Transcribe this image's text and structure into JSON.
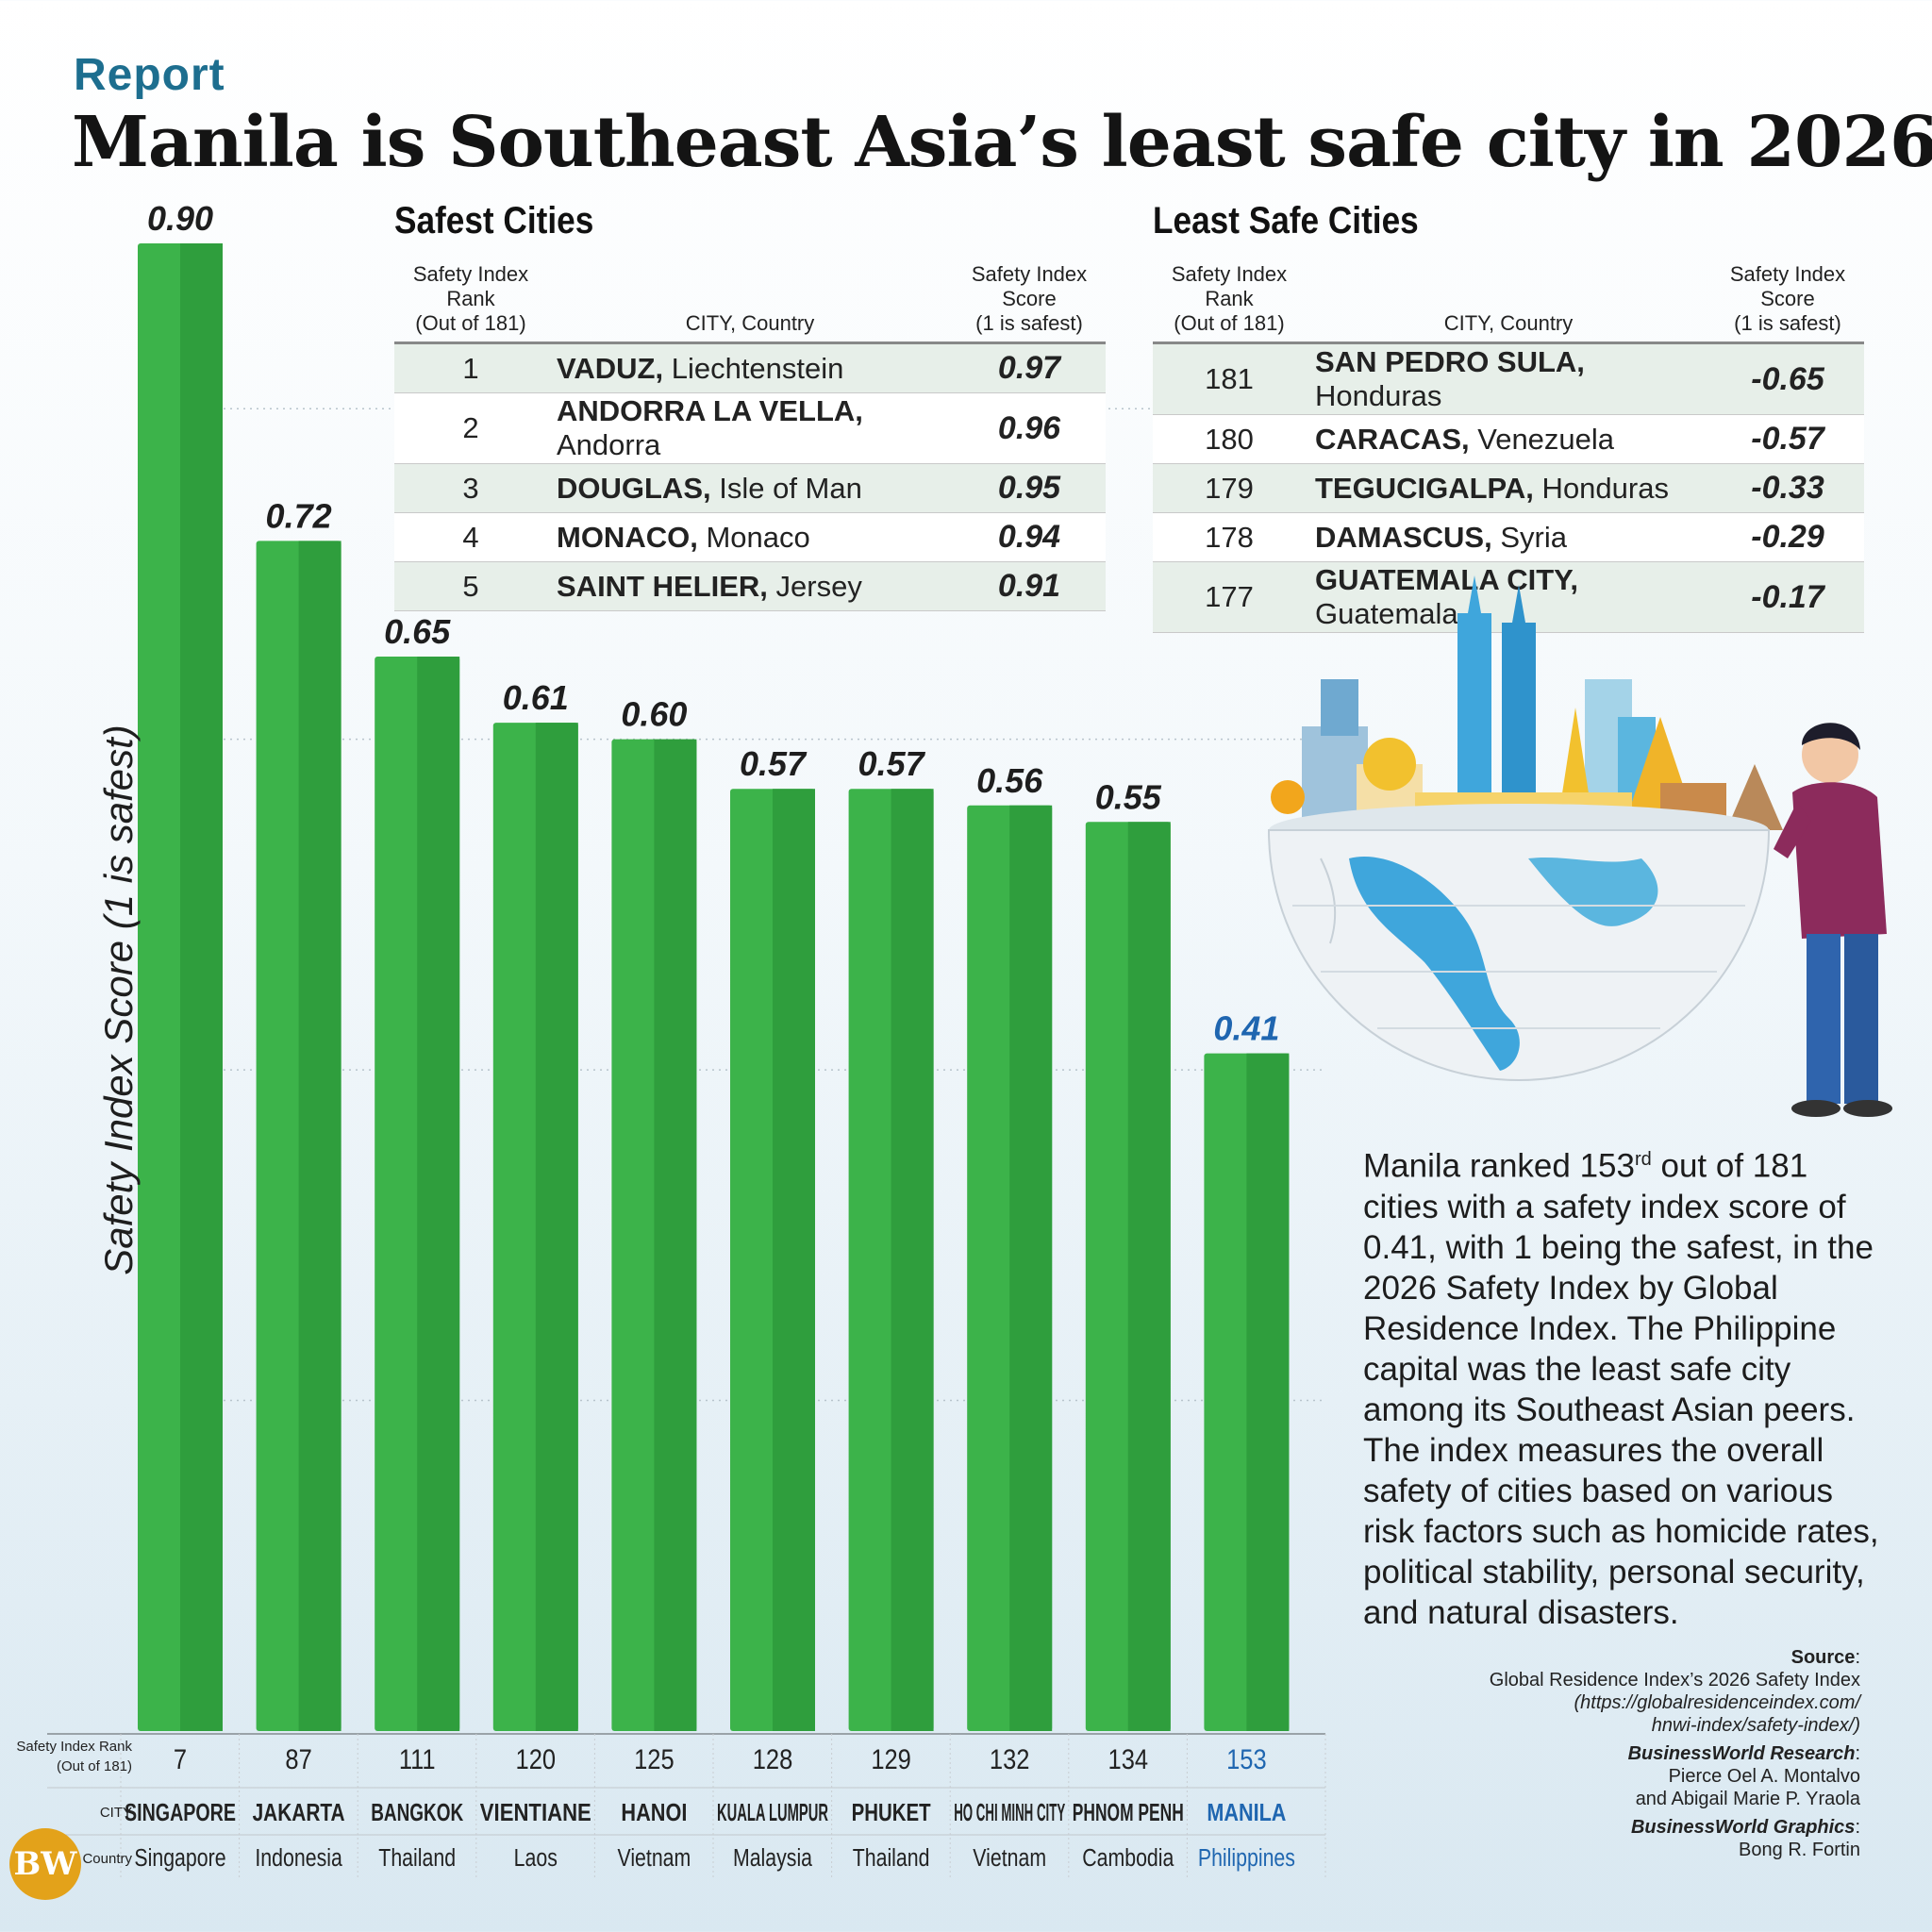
{
  "header": {
    "section": "Report",
    "title": "Manila is Southeast Asia’s least safe city in 2026"
  },
  "chart_data": {
    "type": "bar",
    "ylabel": "Safety Index Score (1 is safest)",
    "ylim": [
      0,
      0.9
    ],
    "grid": true,
    "categories": [
      "SINGAPORE",
      "JAKARTA",
      "BANGKOK",
      "VIENTIANE",
      "HANOI",
      "KUALA LUMPUR",
      "PHUKET",
      "HO CHI MINH CITY",
      "PHNOM PENH",
      "MANILA"
    ],
    "values": [
      0.9,
      0.72,
      0.65,
      0.61,
      0.6,
      0.57,
      0.57,
      0.56,
      0.55,
      0.41
    ],
    "value_labels": [
      "0.90",
      "0.72",
      "0.65",
      "0.61",
      "0.60",
      "0.57",
      "0.57",
      "0.56",
      "0.55",
      "0.41"
    ],
    "ranks": [
      "7",
      "87",
      "111",
      "120",
      "125",
      "128",
      "129",
      "132",
      "134",
      "153"
    ],
    "countries": [
      "Singapore",
      "Indonesia",
      "Thailand",
      "Laos",
      "Vietnam",
      "Malaysia",
      "Thailand",
      "Vietnam",
      "Cambodia",
      "Philippines"
    ],
    "highlight_index": 9,
    "row_labels": {
      "rank_line1": "Safety Index Rank",
      "rank_line2": "(Out of 181)",
      "city": "CITY",
      "country": "Country"
    },
    "colors": {
      "bar": "#3cb34a",
      "bar_dark": "#2f9e3d",
      "highlight_text": "#1f66b0"
    }
  },
  "safest_table": {
    "title": "Safest Cities",
    "headers": {
      "rank_line1": "Safety Index Rank",
      "rank_line2": "(Out of 181)",
      "city": "CITY, Country",
      "score_line1": "Safety Index Score",
      "score_line2": "(1 is safest)"
    },
    "rows": [
      {
        "rank": "1",
        "city": "VADUZ,",
        "country": "Liechtenstein",
        "score": "0.97"
      },
      {
        "rank": "2",
        "city": "ANDORRA LA VELLA,",
        "country": "Andorra",
        "score": "0.96"
      },
      {
        "rank": "3",
        "city": "DOUGLAS,",
        "country": "Isle of Man",
        "score": "0.95"
      },
      {
        "rank": "4",
        "city": "MONACO,",
        "country": "Monaco",
        "score": "0.94"
      },
      {
        "rank": "5",
        "city": "SAINT HELIER,",
        "country": "Jersey",
        "score": "0.91"
      }
    ]
  },
  "least_safe_table": {
    "title": "Least Safe Cities",
    "headers": {
      "rank_line1": "Safety Index Rank",
      "rank_line2": "(Out of 181)",
      "city": "CITY, Country",
      "score_line1": "Safety Index Score",
      "score_line2": "(1 is safest)"
    },
    "rows": [
      {
        "rank": "181",
        "city": "SAN PEDRO SULA,",
        "country": "Honduras",
        "score": "-0.65"
      },
      {
        "rank": "180",
        "city": "CARACAS,",
        "country": "Venezuela",
        "score": "-0.57"
      },
      {
        "rank": "179",
        "city": "TEGUCIGALPA,",
        "country": "Honduras",
        "score": "-0.33"
      },
      {
        "rank": "178",
        "city": "DAMASCUS,",
        "country": "Syria",
        "score": "-0.29"
      },
      {
        "rank": "177",
        "city": "GUATEMALA CITY,",
        "country": "Guatemala",
        "score": "-0.17"
      }
    ]
  },
  "description": {
    "part1": "Manila ranked 153",
    "superscript": "rd",
    "part2": " out of 181 cities with a safety index score of 0.41, with 1 being the safest, in the 2026 Safety Index by Global Residence Index. The Philippine capital was the least safe city among its Southeast Asian peers. The index measures the overall safety of cities based on various risk factors such as homicide rates, political stability, personal security, and natural disasters."
  },
  "credits": {
    "source_label": "Source",
    "source_text": "Global Residence Index’s 2026 Safety Index",
    "source_url_line1": "(https://globalresidenceindex.com/",
    "source_url_line2": "hnwi-index/safety-index/)",
    "research_label": "BusinessWorld Research",
    "research_line1": "Pierce Oel A. Montalvo",
    "research_line2": "and Abigail Marie P. Yraola",
    "graphics_label": "BusinessWorld Graphics",
    "graphics_name": "Bong R. Fortin"
  },
  "logo": {
    "text": "BW"
  }
}
